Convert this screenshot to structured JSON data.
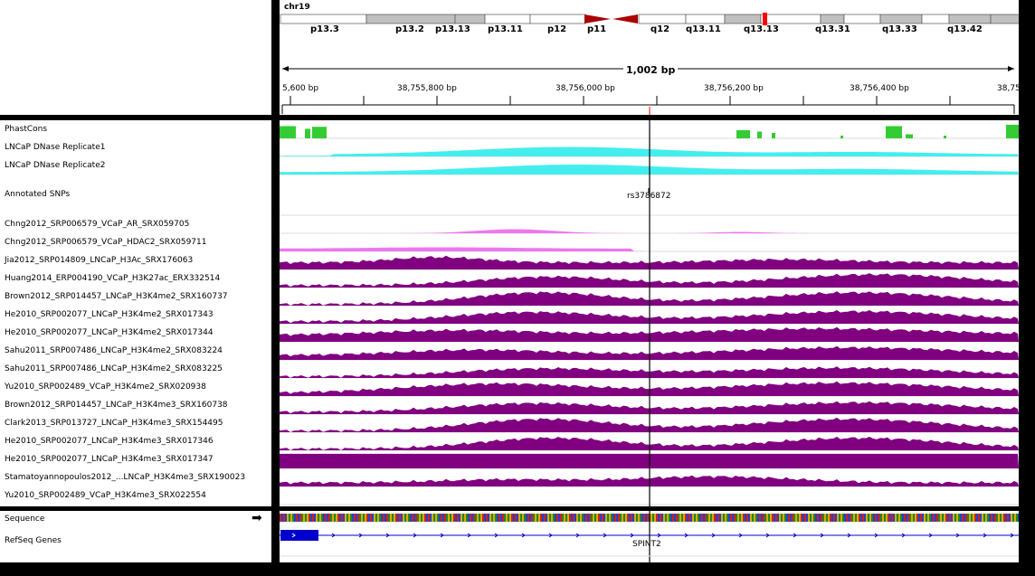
{
  "header": {
    "chromosome": "chr19",
    "span_text": "1,002 bp",
    "bands": [
      {
        "name": "p13.3"
      },
      {
        "name": "p13.2"
      },
      {
        "name": "p13.13"
      },
      {
        "name": "p13.11"
      },
      {
        "name": "p12"
      },
      {
        "name": "p11"
      },
      {
        "name": "q12"
      },
      {
        "name": "q13.11"
      },
      {
        "name": "q13.13"
      },
      {
        "name": "q13.31"
      },
      {
        "name": "q13.33"
      },
      {
        "name": "q13.42"
      }
    ],
    "ticks": [
      {
        "label": "5,600 bp"
      },
      {
        "label": "38,755,800 bp"
      },
      {
        "label": "38,756,000 bp"
      },
      {
        "label": "38,756,200 bp"
      },
      {
        "label": "38,756,400 bp"
      },
      {
        "label": "38,75"
      }
    ]
  },
  "tracks": [
    {
      "name": "PhastCons",
      "color": "#33cc33"
    },
    {
      "name": "LNCaP DNase Replicate1",
      "color": "#44eeee"
    },
    {
      "name": "LNCaP DNase Replicate2",
      "color": "#44eeee"
    },
    {
      "name": "Annotated SNPs"
    },
    {
      "name": "Chng2012_SRP006579_VCaP_AR_SRX059705",
      "color": "#ee77ee"
    },
    {
      "name": "Chng2012_SRP006579_VCaP_HDAC2_SRX059711",
      "color": "#ee77ee"
    },
    {
      "name": "Jia2012_SRP014809_LNCaP_H3Ac_SRX176063",
      "color": "#800080"
    },
    {
      "name": "Huang2014_ERP004190_VCaP_H3K27ac_ERX332514",
      "color": "#800080"
    },
    {
      "name": "Brown2012_SRP014457_LNCaP_H3K4me2_SRX160737",
      "color": "#800080"
    },
    {
      "name": "He2010_SRP002077_LNCaP_H3K4me2_SRX017343",
      "color": "#800080"
    },
    {
      "name": "He2010_SRP002077_LNCaP_H3K4me2_SRX017344",
      "color": "#800080"
    },
    {
      "name": "Sahu2011_SRP007486_LNCaP_H3K4me2_SRX083224",
      "color": "#800080"
    },
    {
      "name": "Sahu2011_SRP007486_LNCaP_H3K4me2_SRX083225",
      "color": "#800080"
    },
    {
      "name": "Yu2010_SRP002489_VCaP_H3K4me2_SRX020938",
      "color": "#800080"
    },
    {
      "name": "Brown2012_SRP014457_LNCaP_H3K4me3_SRX160738",
      "color": "#800080"
    },
    {
      "name": "Clark2013_SRP013727_LNCaP_H3K4me3_SRX154495",
      "color": "#800080"
    },
    {
      "name": "He2010_SRP002077_LNCaP_H3K4me3_SRX017346",
      "color": "#800080"
    },
    {
      "name": "He2010_SRP002077_LNCaP_H3K4me3_SRX017347",
      "color": "#800080"
    },
    {
      "name": "Stamatoyannopoulos2012_...LNCaP_H3K4me3_SRX190023",
      "color": "#800080"
    },
    {
      "name": "Yu2010_SRP002489_VCaP_H3K4me3_SRX022554",
      "color": "#800080"
    }
  ],
  "snp_label": "rs3786872",
  "features": {
    "sequence_label": "Sequence",
    "sequence_arrow": "➡",
    "refseq_label": "RefSeq Genes",
    "gene_name": "SPINT2"
  },
  "colors": {
    "centromere": "#aa0000",
    "band_gray": "#c0c0c0",
    "band_white": "#ffffff",
    "gene": "#0000cc",
    "cursor": "#000000",
    "highlight": "#ff0000"
  }
}
